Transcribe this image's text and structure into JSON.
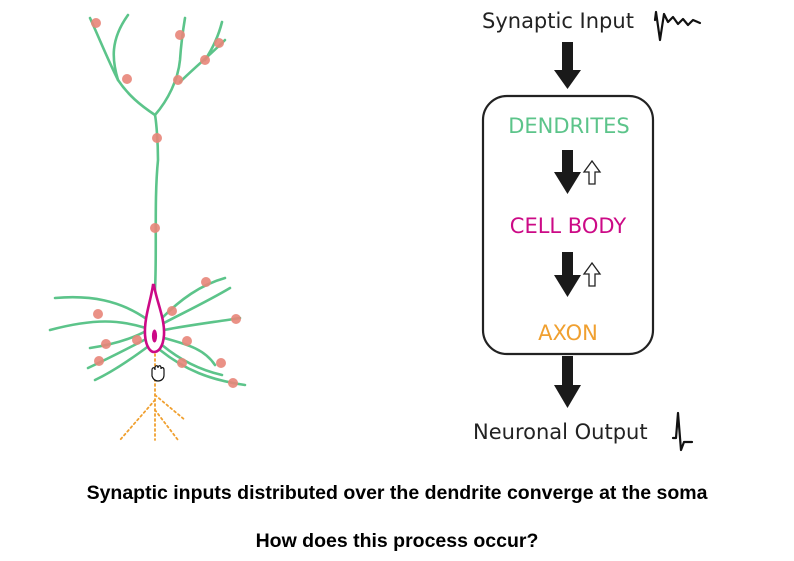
{
  "flow": {
    "input_label": "Synaptic Input",
    "dendrites_label": "DENDRITES",
    "cell_body_label": "CELL BODY",
    "axon_label": "AXON",
    "output_label": "Neuronal Output"
  },
  "captions": {
    "line1": "Synaptic inputs distributed over the dendrite converge at the soma",
    "line2": "How does this process occur?"
  },
  "colors": {
    "dendrite": "#5cc48a",
    "synapse": "#e8867a",
    "soma": "#cc0a86",
    "axon": "#f0a030",
    "box_border": "#222222",
    "arrow": "#1a1a1a"
  }
}
